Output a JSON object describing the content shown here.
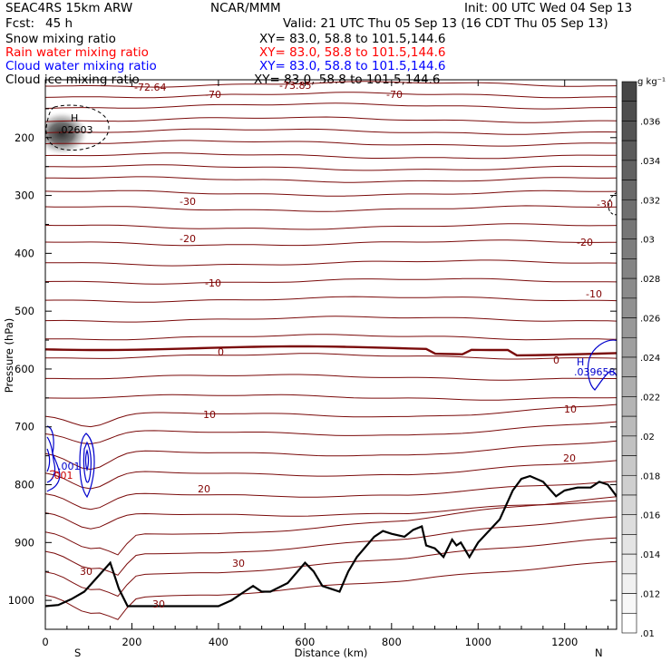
{
  "header": {
    "model": "SEAC4RS 15km ARW",
    "center": "NCAR/MMM",
    "init": "Init: 00 UTC Wed 04 Sep 13",
    "fcst_label": "Fcst:",
    "fcst_value": "45 h",
    "valid": "Valid: 21 UTC Thu 05 Sep 13 (16 CDT Thu 05 Sep 13)"
  },
  "fields": [
    {
      "name": "Snow mixing ratio",
      "xy": "XY=  83.0, 58.8 to 101.5,144.6",
      "color": "#000000"
    },
    {
      "name": "Rain water mixing ratio",
      "xy": "XY=  83.0, 58.8 to 101.5,144.6",
      "color": "#ff0000"
    },
    {
      "name": "Cloud water mixing ratio",
      "xy": "XY=  83.0, 58.8 to 101.5,144.6",
      "color": "#0000ff"
    },
    {
      "name": "Cloud ice mixing ratio",
      "xy": "XY=  83.0, 58.8 to 101.5,144.6",
      "color": "#000000"
    }
  ],
  "colorbar": {
    "unit": "g kg⁻¹",
    "labels": [
      ".036",
      ".034",
      ".032",
      ".03",
      ".028",
      ".026",
      ".024",
      ".022",
      ".02",
      ".018",
      ".016",
      ".014",
      ".012",
      ".01"
    ]
  },
  "chart_data": {
    "type": "contour",
    "xlabel": "Distance (km)",
    "ylabel": "Pressure (hPa)",
    "xlim": [
      0,
      1320
    ],
    "ylim": [
      1050,
      100
    ],
    "x_ticks": [
      0,
      200,
      400,
      600,
      800,
      1000,
      1200
    ],
    "y_ticks": [
      200,
      300,
      400,
      500,
      600,
      700,
      800,
      900,
      1000
    ],
    "endpoints": {
      "left": "S",
      "right": "N"
    },
    "temperature_isotherms_C": [
      {
        "value": -72.64,
        "label": "-72.64"
      },
      {
        "value": -73.85,
        "label": "-73.85"
      },
      {
        "value": -70,
        "label": "-70"
      },
      {
        "value": -30,
        "label": "-30"
      },
      {
        "value": -20,
        "label": "-20"
      },
      {
        "value": -10,
        "label": "-10"
      },
      {
        "value": 0,
        "label": "0"
      },
      {
        "value": 10,
        "label": "10"
      },
      {
        "value": 20,
        "label": "20"
      },
      {
        "value": 30,
        "label": "30"
      }
    ],
    "annotations": [
      {
        "text": "H",
        "x": 60,
        "p": 185
      },
      {
        "text": ".02603",
        "x": 60,
        "p": 198
      },
      {
        "text": "H",
        "x": 1250,
        "p": 590
      },
      {
        "text": ".039658",
        "x": 1250,
        "p": 603
      },
      {
        "text": ".001",
        "x": 15,
        "p": 775
      },
      {
        "text": ".001",
        "x": 12,
        "p": 790
      }
    ],
    "terrain_surface": {
      "x": [
        0,
        30,
        60,
        90,
        120,
        150,
        170,
        190,
        200,
        250,
        300,
        350,
        400,
        430,
        460,
        480,
        500,
        520,
        560,
        600,
        620,
        640,
        680,
        700,
        720,
        760,
        780,
        800,
        830,
        850,
        870,
        880,
        900,
        920,
        940,
        950,
        960,
        980,
        1000,
        1050,
        1080,
        1100,
        1120,
        1150,
        1180,
        1200,
        1230,
        1260,
        1280,
        1300,
        1320
      ],
      "p": [
        1010,
        1008,
        998,
        985,
        960,
        935,
        980,
        1010,
        1010,
        1010,
        1010,
        1010,
        1010,
        1000,
        985,
        975,
        985,
        985,
        970,
        935,
        950,
        975,
        985,
        950,
        925,
        890,
        880,
        885,
        890,
        878,
        872,
        905,
        910,
        925,
        895,
        905,
        900,
        925,
        900,
        860,
        810,
        790,
        785,
        795,
        820,
        810,
        805,
        805,
        795,
        800,
        820
      ]
    },
    "snow_max_g_per_kg": 0.02603,
    "cloud_water_max_g_per_kg": 0.039658
  }
}
